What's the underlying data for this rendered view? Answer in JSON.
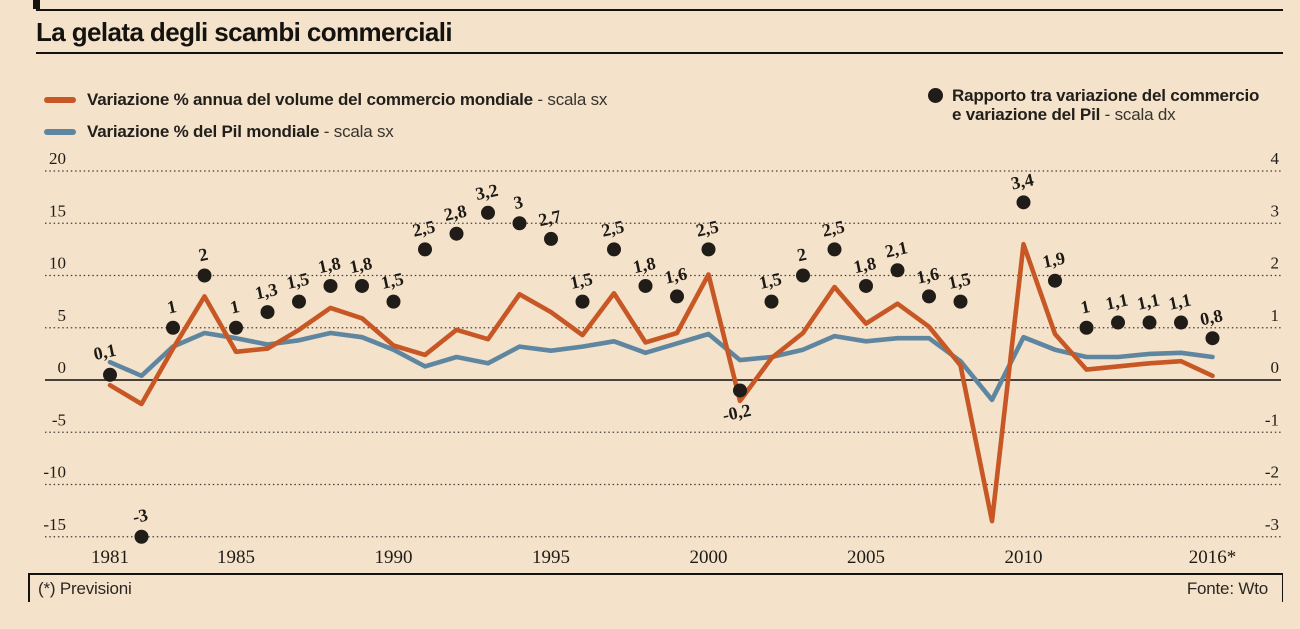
{
  "header": {
    "title": "La gelata degli scambi commerciali"
  },
  "legend": {
    "trade": {
      "label": "Variazione % annua del volume del commercio mondiale",
      "suffix": " - scala sx"
    },
    "gdp": {
      "label": "Variazione % del Pil mondiale",
      "suffix": " - scala sx"
    },
    "ratio": {
      "label_line1": "Rapporto tra variazione del commercio",
      "label_line2": "e variazione del Pil",
      "suffix": " - scala dx"
    }
  },
  "footer": {
    "note": "(*) Previsioni",
    "source": "Fonte: Wto"
  },
  "colors": {
    "background": "#f4e2ca",
    "trade_line": "#c75825",
    "gdp_line": "#5f86a0",
    "ratio_dot": "#201d18",
    "grid": "#45403a",
    "zero_line": "#2d2a25",
    "text": "#1f1c17"
  },
  "chart_data": {
    "type": "line",
    "title": "La gelata degli scambi commerciali",
    "x": [
      1981,
      1982,
      1983,
      1984,
      1985,
      1986,
      1987,
      1988,
      1989,
      1990,
      1991,
      1992,
      1993,
      1994,
      1995,
      1996,
      1997,
      1998,
      1999,
      2000,
      2001,
      2002,
      2003,
      2004,
      2005,
      2006,
      2007,
      2008,
      2009,
      2010,
      2011,
      2012,
      2013,
      2014,
      2015,
      2016
    ],
    "x_tick_labels": [
      {
        "year": 1981,
        "label": "1981"
      },
      {
        "year": 1985,
        "label": "1985"
      },
      {
        "year": 1990,
        "label": "1990"
      },
      {
        "year": 1995,
        "label": "1995"
      },
      {
        "year": 2000,
        "label": "2000"
      },
      {
        "year": 2005,
        "label": "2005"
      },
      {
        "year": 2010,
        "label": "2010"
      },
      {
        "year": 2016,
        "label": "2016*"
      }
    ],
    "left_axis": {
      "ticks": [
        20,
        15,
        10,
        5,
        0,
        -5,
        -10,
        -15
      ],
      "range": [
        -17,
        21
      ],
      "grid": "dotted"
    },
    "right_axis": {
      "ticks": [
        4,
        3,
        2,
        1,
        0,
        -1,
        -2,
        -3
      ]
    },
    "series": [
      {
        "name": "Variazione % annua del volume del commercio mondiale (scala sx)",
        "type": "line",
        "color": "#c75825",
        "values": [
          -0.5,
          -2.3,
          3.0,
          8.0,
          2.7,
          3.0,
          4.8,
          6.9,
          5.9,
          3.3,
          2.4,
          4.8,
          3.9,
          8.2,
          6.5,
          4.3,
          8.3,
          3.6,
          4.5,
          10.1,
          -2.0,
          2.1,
          4.5,
          8.9,
          5.4,
          7.3,
          5.1,
          1.4,
          -13.5,
          13.0,
          4.4,
          1.0,
          1.3,
          1.6,
          1.8,
          0.4
        ]
      },
      {
        "name": "Variazione % del Pil mondiale (scala sx)",
        "type": "line",
        "color": "#5f86a0",
        "values": [
          1.7,
          0.4,
          3.2,
          4.5,
          4.0,
          3.4,
          3.8,
          4.5,
          4.1,
          2.9,
          1.3,
          2.2,
          1.6,
          3.2,
          2.8,
          3.2,
          3.7,
          2.6,
          3.5,
          4.4,
          1.9,
          2.2,
          2.9,
          4.2,
          3.7,
          4.0,
          4.0,
          1.8,
          -1.9,
          4.1,
          2.9,
          2.2,
          2.2,
          2.5,
          2.6,
          2.2
        ]
      },
      {
        "name": "Rapporto tra variazione del commercio e variazione del Pil (scala dx)",
        "type": "scatter",
        "color": "#201d18",
        "scale": "right",
        "values": [
          0.1,
          -3,
          1,
          2,
          1,
          1.3,
          1.5,
          1.8,
          1.8,
          1.5,
          2.5,
          2.8,
          3.2,
          3,
          2.7,
          1.5,
          2.5,
          1.8,
          1.6,
          2.5,
          -0.2,
          1.5,
          2,
          2.5,
          1.8,
          2.1,
          1.6,
          1.5,
          null,
          3.4,
          1.9,
          1,
          1.1,
          1.1,
          1.1,
          0.8
        ],
        "labels": [
          "0,1",
          "-3",
          "1",
          "2",
          "1",
          "1,3",
          "1,5",
          "1,8",
          "1,8",
          "1,5",
          "2,5",
          "2,8",
          "3,2",
          "3",
          "2,7",
          "1,5",
          "2,5",
          "1,8",
          "1,6",
          "2,5",
          "-0,2",
          "1,5",
          "2",
          "2,5",
          "1,8",
          "2,1",
          "1,6",
          "1,5",
          null,
          "3,4",
          "1,9",
          "1",
          "1,1",
          "1,1",
          "1,1",
          "0,8"
        ],
        "label_overrides": {
          "1981": {
            "dx": -4,
            "dy": -17
          },
          "2001": {
            "dx": -2,
            "dy": 28
          }
        }
      }
    ]
  }
}
